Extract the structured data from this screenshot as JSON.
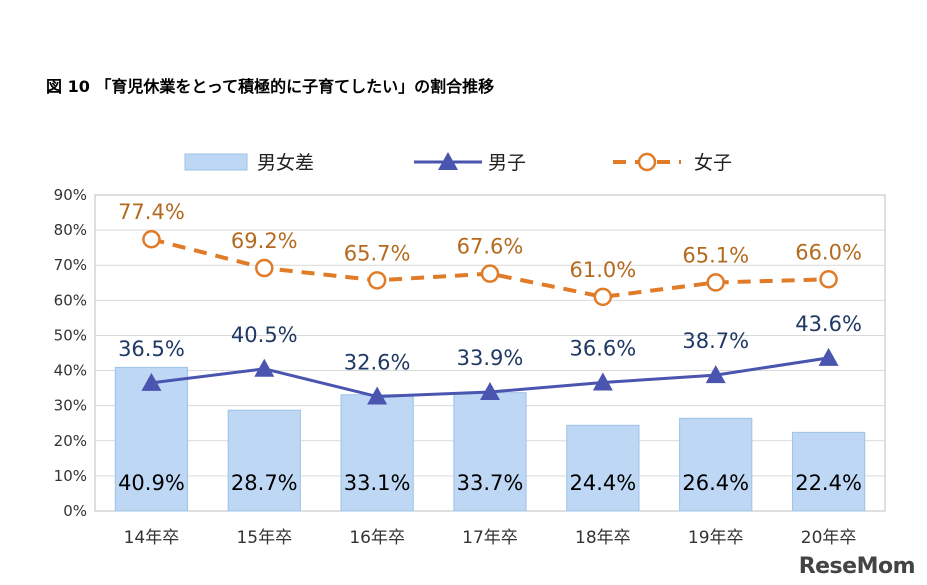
{
  "title": "図 10 「育児休業をとって積極的に子育てしたい」の割合推移",
  "watermark": "ReseMom",
  "colors": {
    "bar": "#bdd7f4",
    "bar_stroke": "#9dc3e6",
    "male": "#4a55b0",
    "female": "#e07b28",
    "female_label": "#b46a1e",
    "male_label": "#1f3864"
  },
  "chart_data": {
    "type": "bar",
    "categories": [
      "14年卒",
      "15年卒",
      "16年卒",
      "17年卒",
      "18年卒",
      "19年卒",
      "20年卒"
    ],
    "ylim": [
      0,
      90
    ],
    "yticks": [
      "0%",
      "10%",
      "20%",
      "30%",
      "40%",
      "50%",
      "60%",
      "70%",
      "80%",
      "90%"
    ],
    "grid": true,
    "legend_position": "top",
    "series": [
      {
        "name": "男女差",
        "type": "bar",
        "values": [
          40.9,
          28.7,
          33.1,
          33.7,
          24.4,
          26.4,
          22.4
        ],
        "labels": [
          "40.9%",
          "28.7%",
          "33.1%",
          "33.7%",
          "24.4%",
          "26.4%",
          "22.4%"
        ]
      },
      {
        "name": "男子",
        "type": "line",
        "marker": "triangle",
        "values": [
          36.5,
          40.5,
          32.6,
          33.9,
          36.6,
          38.7,
          43.6
        ],
        "labels": [
          "36.5%",
          "40.5%",
          "32.6%",
          "33.9%",
          "36.6%",
          "38.7%",
          "43.6%"
        ]
      },
      {
        "name": "女子",
        "type": "line",
        "marker": "circle",
        "dashed": true,
        "values": [
          77.4,
          69.2,
          65.7,
          67.6,
          61.0,
          65.1,
          66.0
        ],
        "labels": [
          "77.4%",
          "69.2%",
          "65.7%",
          "67.6%",
          "61.0%",
          "65.1%",
          "66.0%"
        ]
      }
    ]
  }
}
